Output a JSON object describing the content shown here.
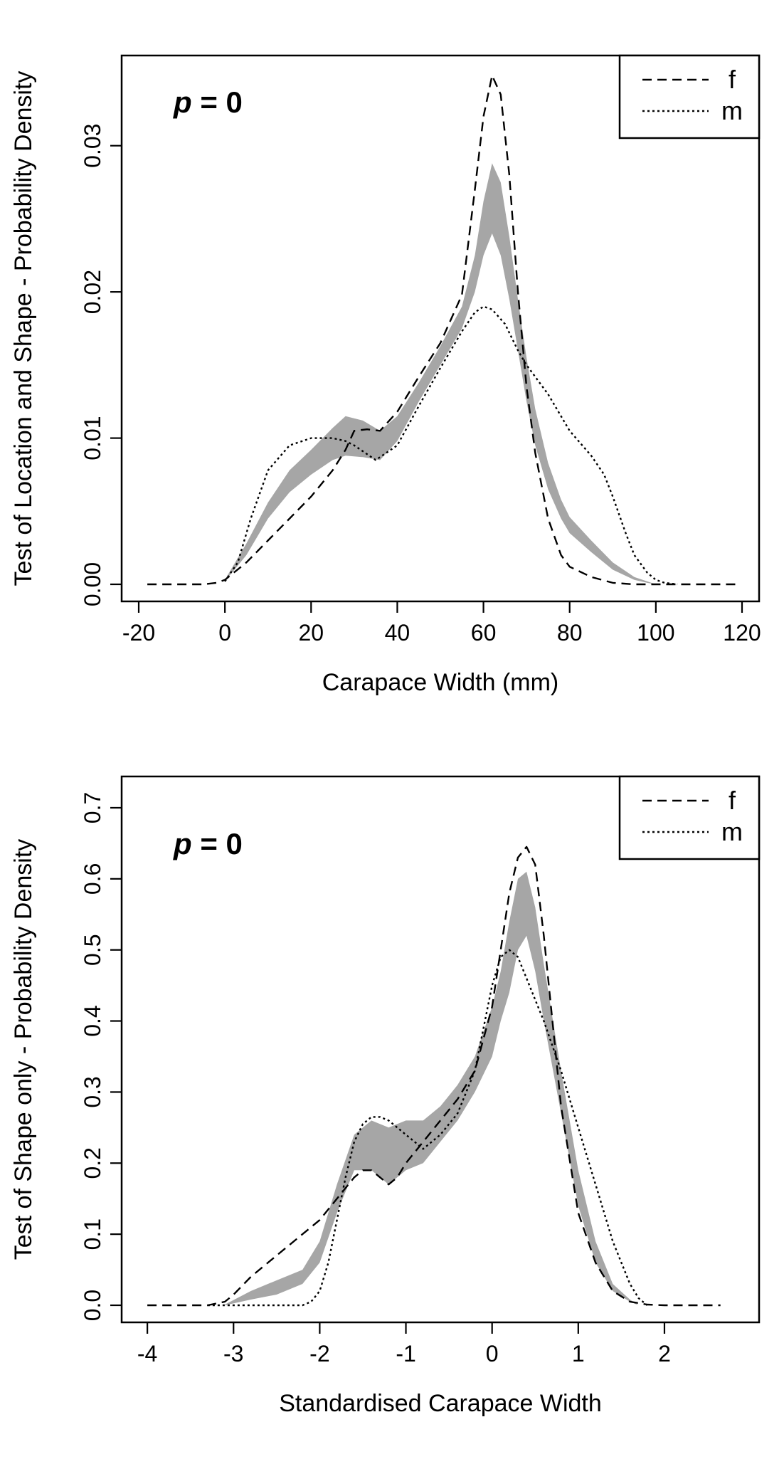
{
  "chart_data": [
    {
      "type": "line",
      "xlabel": "Carapace Width (mm)",
      "ylabel": "Test of Location and Shape - Probability Density",
      "annotation": {
        "var": "p",
        "rest": " = 0"
      },
      "xlim": [
        -20,
        120
      ],
      "ylim": [
        0,
        0.035
      ],
      "xticks": [
        -20,
        0,
        20,
        40,
        60,
        80,
        100,
        120
      ],
      "xtick_labels": [
        "-20",
        "0",
        "20",
        "40",
        "60",
        "80",
        "100",
        "120"
      ],
      "yticks": [
        0,
        0.01,
        0.02,
        0.03
      ],
      "ytick_labels": [
        "0.00",
        "0.01",
        "0.02",
        "0.03"
      ],
      "legend": {
        "position": "top-right",
        "entries": [
          {
            "label": "f",
            "style": "dashed"
          },
          {
            "label": "m",
            "style": "dotted"
          }
        ]
      },
      "band": {
        "color": "#a6a6a6",
        "x": [
          0,
          5,
          10,
          15,
          20,
          25,
          28,
          32,
          36,
          40,
          45,
          50,
          55,
          58,
          60,
          62,
          64,
          66,
          68,
          70,
          72,
          75,
          78,
          80,
          85,
          90,
          95,
          98,
          100
        ],
        "lower": [
          0.0002,
          0.002,
          0.0045,
          0.0063,
          0.0075,
          0.0085,
          0.0088,
          0.0087,
          0.0085,
          0.0098,
          0.0125,
          0.015,
          0.0175,
          0.02,
          0.0225,
          0.024,
          0.0225,
          0.0195,
          0.016,
          0.0125,
          0.0095,
          0.0065,
          0.0045,
          0.0035,
          0.0022,
          0.001,
          0.0003,
          0.0001,
          0.0
        ],
        "upper": [
          0.0003,
          0.0028,
          0.0056,
          0.0078,
          0.0092,
          0.0107,
          0.0115,
          0.0112,
          0.0105,
          0.0115,
          0.0138,
          0.0163,
          0.019,
          0.0225,
          0.0262,
          0.0288,
          0.0275,
          0.0238,
          0.0195,
          0.0155,
          0.012,
          0.0083,
          0.0058,
          0.0046,
          0.003,
          0.0015,
          0.0005,
          0.0002,
          0.0
        ]
      },
      "series": [
        {
          "name": "f",
          "style": "dashed",
          "x": [
            -18,
            -5,
            -2,
            0,
            5,
            10,
            15,
            20,
            25,
            28,
            30,
            33,
            36,
            40,
            45,
            50,
            55,
            58,
            60,
            62,
            64,
            66,
            68,
            70,
            72,
            75,
            78,
            80,
            85,
            90,
            95,
            100,
            105,
            110,
            119
          ],
          "y": [
            0,
            0,
            0.0001,
            0.0003,
            0.0015,
            0.003,
            0.0045,
            0.006,
            0.0078,
            0.0092,
            0.0105,
            0.0106,
            0.0105,
            0.0118,
            0.0142,
            0.0165,
            0.0198,
            0.027,
            0.032,
            0.0348,
            0.0335,
            0.028,
            0.02,
            0.0135,
            0.009,
            0.0045,
            0.002,
            0.0012,
            0.0005,
            0.0001,
            0,
            0,
            0,
            0,
            0
          ]
        },
        {
          "name": "m",
          "style": "dotted",
          "x": [
            0,
            3,
            6,
            10,
            15,
            20,
            25,
            28,
            30,
            35,
            40,
            45,
            50,
            55,
            58,
            60,
            62,
            65,
            68,
            70,
            75,
            80,
            85,
            88,
            90,
            93,
            95,
            98,
            100,
            102,
            105
          ],
          "y": [
            0.0002,
            0.0015,
            0.0045,
            0.0078,
            0.0095,
            0.01,
            0.01,
            0.0098,
            0.0095,
            0.0085,
            0.0095,
            0.0122,
            0.0148,
            0.0173,
            0.0186,
            0.019,
            0.0188,
            0.0178,
            0.016,
            0.015,
            0.013,
            0.0105,
            0.0088,
            0.0075,
            0.006,
            0.0035,
            0.002,
            0.0008,
            0.0003,
            0.0001,
            0
          ]
        }
      ]
    },
    {
      "type": "line",
      "xlabel": "Standardised Carapace Width",
      "ylabel": "Test of Shape only - Probability Density",
      "annotation": {
        "var": "p",
        "rest": " = 0"
      },
      "xlim": [
        -4.1,
        2.9
      ],
      "ylim": [
        0,
        0.72
      ],
      "xticks": [
        -4,
        -3,
        -2,
        -1,
        0,
        1,
        2
      ],
      "xtick_labels": [
        "-4",
        "-3",
        "-2",
        "-1",
        "0",
        "1",
        "2"
      ],
      "yticks": [
        0,
        0.1,
        0.2,
        0.3,
        0.4,
        0.5,
        0.6,
        0.7
      ],
      "ytick_labels": [
        "0.0",
        "0.1",
        "0.2",
        "0.3",
        "0.4",
        "0.5",
        "0.6",
        "0.7"
      ],
      "legend": {
        "position": "top-right",
        "entries": [
          {
            "label": "f",
            "style": "dashed"
          },
          {
            "label": "m",
            "style": "dotted"
          }
        ]
      },
      "band": {
        "color": "#a6a6a6",
        "x": [
          -3.1,
          -2.8,
          -2.5,
          -2.2,
          -2.0,
          -1.8,
          -1.6,
          -1.4,
          -1.2,
          -1.0,
          -0.8,
          -0.6,
          -0.4,
          -0.2,
          0,
          0.1,
          0.2,
          0.3,
          0.4,
          0.5,
          0.6,
          0.8,
          1.0,
          1.2,
          1.4,
          1.6,
          1.7
        ],
        "lower": [
          0.0,
          0.008,
          0.015,
          0.03,
          0.06,
          0.13,
          0.19,
          0.19,
          0.17,
          0.19,
          0.2,
          0.23,
          0.26,
          0.3,
          0.35,
          0.4,
          0.44,
          0.5,
          0.52,
          0.47,
          0.4,
          0.27,
          0.14,
          0.06,
          0.02,
          0.005,
          0.0
        ],
        "upper": [
          0.001,
          0.02,
          0.035,
          0.05,
          0.09,
          0.17,
          0.24,
          0.26,
          0.25,
          0.26,
          0.26,
          0.28,
          0.31,
          0.35,
          0.42,
          0.47,
          0.54,
          0.6,
          0.61,
          0.56,
          0.48,
          0.33,
          0.19,
          0.09,
          0.03,
          0.008,
          0.0
        ]
      },
      "series": [
        {
          "name": "f",
          "style": "dashed",
          "x": [
            -4.0,
            -3.3,
            -3.1,
            -3.0,
            -2.8,
            -2.5,
            -2.2,
            -2.0,
            -1.8,
            -1.6,
            -1.5,
            -1.4,
            -1.3,
            -1.2,
            -1.1,
            -1.0,
            -0.8,
            -0.6,
            -0.4,
            -0.2,
            0,
            0.1,
            0.2,
            0.3,
            0.4,
            0.5,
            0.6,
            0.7,
            0.8,
            1.0,
            1.2,
            1.4,
            1.6,
            1.8,
            2.0,
            2.65
          ],
          "y": [
            0,
            0,
            0.005,
            0.015,
            0.04,
            0.07,
            0.1,
            0.12,
            0.15,
            0.18,
            0.19,
            0.19,
            0.18,
            0.17,
            0.18,
            0.2,
            0.23,
            0.26,
            0.29,
            0.33,
            0.42,
            0.5,
            0.58,
            0.63,
            0.645,
            0.62,
            0.52,
            0.4,
            0.28,
            0.13,
            0.06,
            0.02,
            0.005,
            0.001,
            0,
            0
          ]
        },
        {
          "name": "m",
          "style": "dotted",
          "x": [
            -3.3,
            -2.2,
            -2.1,
            -2.0,
            -1.9,
            -1.8,
            -1.7,
            -1.6,
            -1.5,
            -1.4,
            -1.3,
            -1.2,
            -1.1,
            -1.0,
            -0.9,
            -0.8,
            -0.6,
            -0.4,
            -0.2,
            0,
            0.1,
            0.2,
            0.3,
            0.4,
            0.6,
            0.8,
            1.0,
            1.2,
            1.4,
            1.6,
            1.7,
            1.8
          ],
          "y": [
            0,
            0,
            0.005,
            0.02,
            0.06,
            0.12,
            0.18,
            0.23,
            0.255,
            0.265,
            0.265,
            0.26,
            0.25,
            0.24,
            0.23,
            0.22,
            0.24,
            0.27,
            0.33,
            0.45,
            0.49,
            0.5,
            0.49,
            0.46,
            0.4,
            0.33,
            0.25,
            0.17,
            0.09,
            0.03,
            0.01,
            0
          ]
        }
      ]
    }
  ]
}
